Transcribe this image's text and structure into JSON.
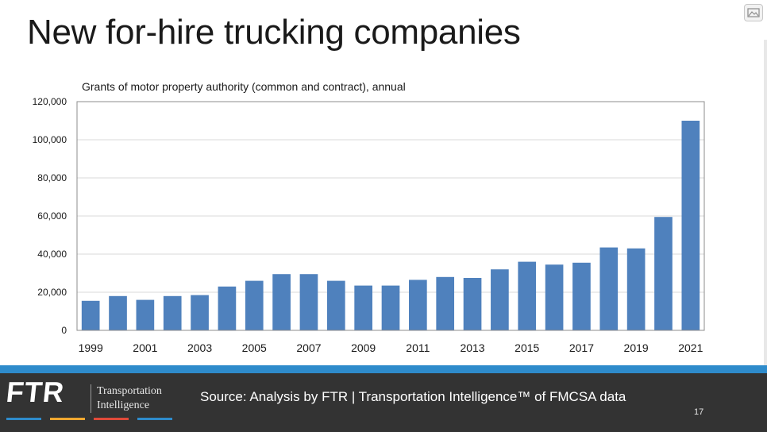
{
  "slide": {
    "title": "New for-hire trucking companies",
    "source": "Source: Analysis by FTR | Transportation Intelligence™ of FMCSA data",
    "page_number": "17"
  },
  "logo": {
    "mark": "FTR",
    "line1": "Transportation",
    "line2": "Intelligence",
    "stripe_colors": [
      "#2e8bcb",
      "#f0a830",
      "#e04a3a",
      "#2e8bcb"
    ]
  },
  "icons": {
    "top_right": "image-icon"
  },
  "colors": {
    "bar": "#4f81bd",
    "band": "#2e8bcb",
    "footer": "#333333"
  },
  "chart_data": {
    "type": "bar",
    "title": "Grants of motor property authority (common and contract), annual",
    "xlabel": "",
    "ylabel": "",
    "ylim": [
      0,
      120000
    ],
    "grid": true,
    "y_ticks": [
      0,
      20000,
      40000,
      60000,
      80000,
      100000,
      120000
    ],
    "y_tick_labels": [
      "0",
      "20,000",
      "40,000",
      "60,000",
      "80,000",
      "100,000",
      "120,000"
    ],
    "categories": [
      "1999",
      "2000",
      "2001",
      "2002",
      "2003",
      "2004",
      "2005",
      "2006",
      "2007",
      "2008",
      "2009",
      "2010",
      "2011",
      "2012",
      "2013",
      "2014",
      "2015",
      "2016",
      "2017",
      "2018",
      "2019",
      "2020",
      "2021"
    ],
    "x_tick_labels": [
      "1999",
      "",
      "2001",
      "",
      "2003",
      "",
      "2005",
      "",
      "2007",
      "",
      "2009",
      "",
      "2011",
      "",
      "2013",
      "",
      "2015",
      "",
      "2017",
      "",
      "2019",
      "",
      "2021"
    ],
    "values": [
      15500,
      18000,
      16000,
      18000,
      18500,
      23000,
      26000,
      29500,
      29500,
      26000,
      23500,
      23500,
      26500,
      28000,
      27500,
      32000,
      36000,
      34500,
      35500,
      43500,
      43000,
      59500,
      110000
    ]
  }
}
